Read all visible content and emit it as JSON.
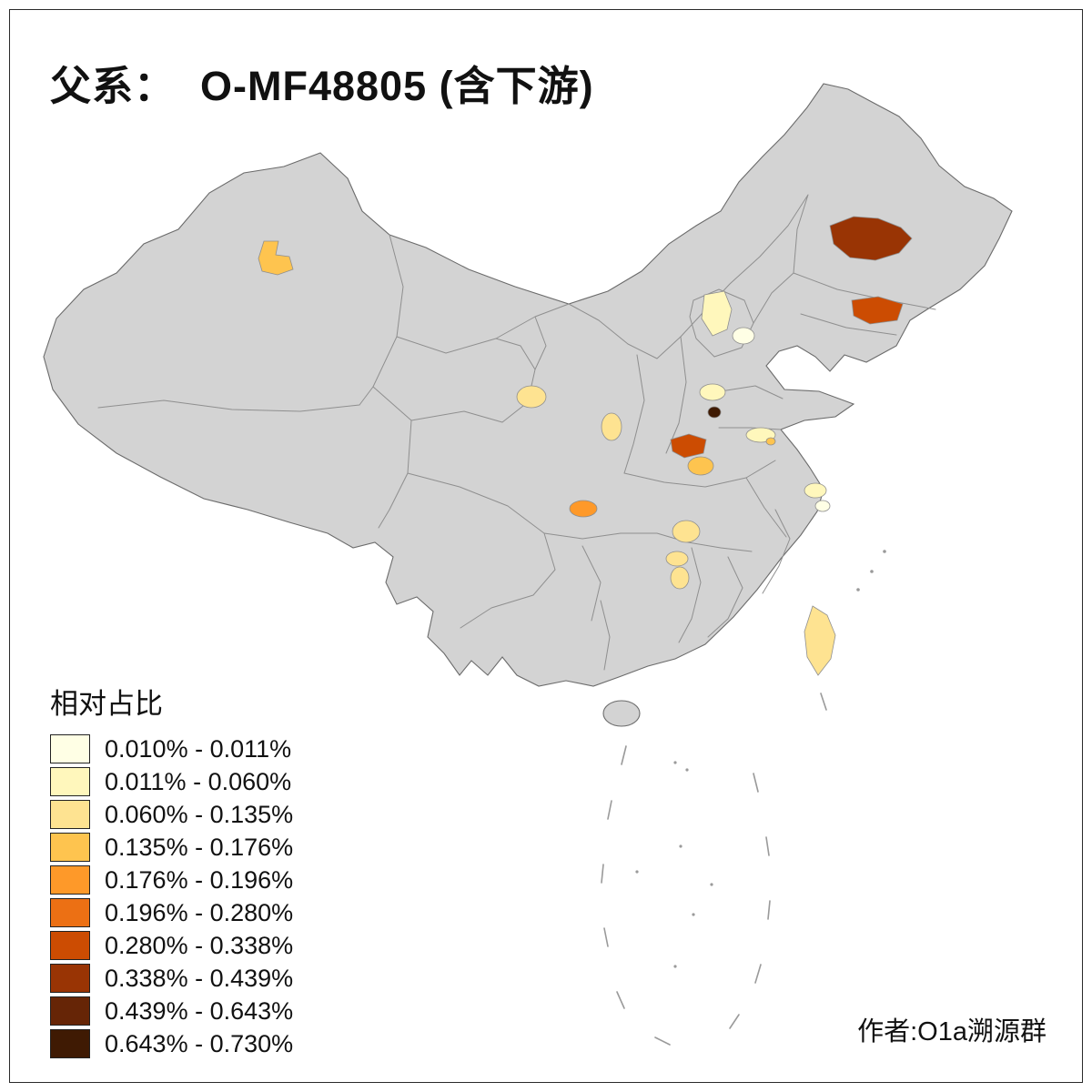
{
  "title": "父系：  O-MF48805 (含下游)",
  "author": "作者:O1a溯源群",
  "legend": {
    "title": "相对占比",
    "classes": [
      {
        "label": "0.010% - 0.011%",
        "color": "#FFFFE5"
      },
      {
        "label": "0.011% - 0.060%",
        "color": "#FFF7BC"
      },
      {
        "label": "0.060% - 0.135%",
        "color": "#FEE391"
      },
      {
        "label": "0.135% - 0.176%",
        "color": "#FEC44F"
      },
      {
        "label": "0.176% - 0.196%",
        "color": "#FE9929"
      },
      {
        "label": "0.196% - 0.280%",
        "color": "#EC7014"
      },
      {
        "label": "0.280% - 0.338%",
        "color": "#CC4C02"
      },
      {
        "label": "0.338% - 0.439%",
        "color": "#993404"
      },
      {
        "label": "0.439% - 0.643%",
        "color": "#662506"
      },
      {
        "label": "0.643% - 0.730%",
        "color": "#3F1A03"
      }
    ]
  },
  "map": {
    "background": "#FFFFFF",
    "base_fill": "#D3D3D3",
    "border_color": "#8F8F8F",
    "outline_color": "#6B6B6B",
    "regions": [
      {
        "name": "region-xinjiang",
        "class_index": 3
      },
      {
        "name": "region-heilongjiang",
        "class_index": 7
      },
      {
        "name": "region-liaoning",
        "class_index": 6
      },
      {
        "name": "region-hebei",
        "class_index": 1
      },
      {
        "name": "region-beijing",
        "class_index": 0
      },
      {
        "name": "region-gansu",
        "class_index": 2
      },
      {
        "name": "region-shaanxi-north",
        "class_index": 2
      },
      {
        "name": "region-henan-north",
        "class_index": 1
      },
      {
        "name": "region-henan-dark-spot",
        "class_index": 9
      },
      {
        "name": "region-henan-west",
        "class_index": 6
      },
      {
        "name": "region-henan-south",
        "class_index": 3
      },
      {
        "name": "region-jiangsu",
        "class_index": 1
      },
      {
        "name": "region-jiangsu-spot",
        "class_index": 3
      },
      {
        "name": "region-shanghai-north",
        "class_index": 1
      },
      {
        "name": "region-shanghai",
        "class_index": 0
      },
      {
        "name": "region-chongqing",
        "class_index": 4
      },
      {
        "name": "region-hubei",
        "class_index": 2
      },
      {
        "name": "region-hunan-north",
        "class_index": 2
      },
      {
        "name": "region-hunan-south",
        "class_index": 2
      },
      {
        "name": "region-taiwan",
        "class_index": 2
      }
    ]
  }
}
